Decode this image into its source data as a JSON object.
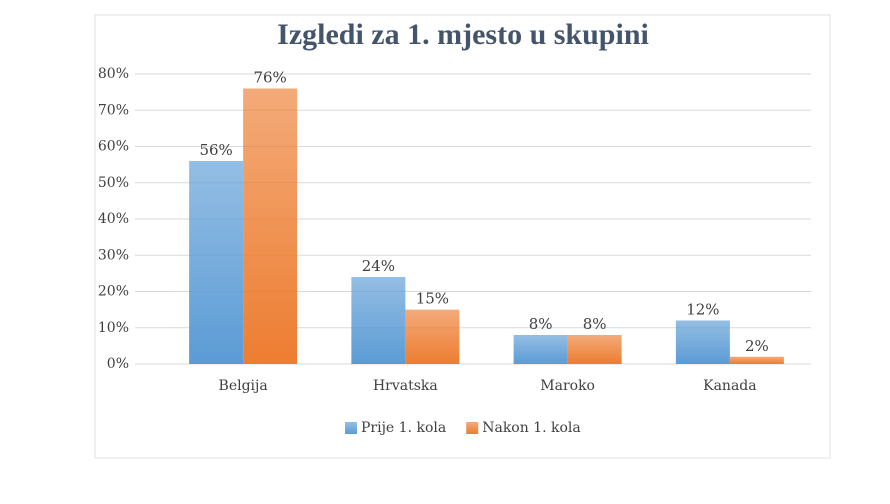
{
  "chart_data": {
    "type": "bar",
    "title": "Izgledi za 1. mjesto u skupini",
    "categories": [
      "Belgija",
      "Hrvatska",
      "Maroko",
      "Kanada"
    ],
    "series": [
      {
        "name": "Prije 1. kola",
        "color": "#5b9bd5",
        "values": [
          56,
          24,
          8,
          12
        ],
        "value_labels": [
          "56%",
          "24%",
          "8%",
          "12%"
        ]
      },
      {
        "name": "Nakon 1. kola",
        "color": "#ed7d31",
        "values": [
          76,
          15,
          8,
          2
        ],
        "value_labels": [
          "76%",
          "15%",
          "8%",
          "2%"
        ]
      }
    ],
    "ylim": [
      0,
      80
    ],
    "yticks": [
      {
        "value": 0,
        "label": "0%"
      },
      {
        "value": 10,
        "label": "10%"
      },
      {
        "value": 20,
        "label": "20%"
      },
      {
        "value": 30,
        "label": "30%"
      },
      {
        "value": 40,
        "label": "40%"
      },
      {
        "value": 50,
        "label": "50%"
      },
      {
        "value": 60,
        "label": "60%"
      },
      {
        "value": 70,
        "label": "70%"
      },
      {
        "value": 80,
        "label": "80%"
      }
    ],
    "grid": true,
    "legend": "bottom"
  }
}
